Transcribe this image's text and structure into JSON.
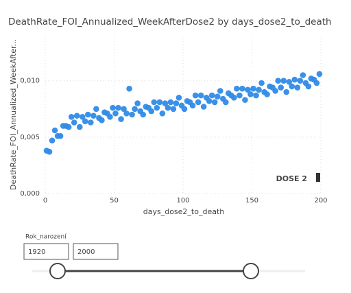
{
  "chart_data": {
    "type": "scatter",
    "title": "DeathRate_FOI_Annualized_WeekAfterDose2 by days_dose2_to_death",
    "x_label": "days_dose2_to_death",
    "y_label": "DeathRate_FOI_Annualized_WeekAfter...",
    "annotation": "DOSE 2",
    "color": "#2f8be6",
    "grid": true,
    "xlim": [
      0,
      200
    ],
    "xticks": [
      0,
      50,
      100,
      150,
      200
    ],
    "ylim": [
      0,
      0.014
    ],
    "yticks": [
      {
        "value": 0,
        "label": "0,000"
      },
      {
        "value": 0.005,
        "label": "0,005"
      },
      {
        "value": 0.01,
        "label": "0,010"
      }
    ],
    "x": [
      1,
      3,
      5,
      7,
      9,
      11,
      13,
      15,
      17,
      19,
      21,
      23,
      25,
      27,
      29,
      31,
      33,
      35,
      37,
      39,
      41,
      43,
      45,
      47,
      49,
      51,
      53,
      55,
      57,
      59,
      61,
      63,
      65,
      67,
      69,
      71,
      73,
      75,
      77,
      79,
      81,
      83,
      85,
      87,
      89,
      91,
      93,
      95,
      97,
      99,
      101,
      103,
      105,
      107,
      109,
      111,
      113,
      115,
      117,
      119,
      121,
      123,
      125,
      127,
      129,
      131,
      133,
      135,
      137,
      139,
      141,
      143,
      145,
      147,
      149,
      151,
      153,
      155,
      157,
      159,
      161,
      163,
      165,
      167,
      169,
      171,
      173,
      175,
      177,
      179,
      181,
      183,
      185,
      187,
      189,
      191,
      193,
      195,
      197,
      199
    ],
    "values": [
      0.0038,
      0.0037,
      0.0047,
      0.0056,
      0.0051,
      0.0051,
      0.006,
      0.006,
      0.0059,
      0.0068,
      0.0063,
      0.0069,
      0.0059,
      0.0068,
      0.0064,
      0.007,
      0.0063,
      0.0069,
      0.0075,
      0.0067,
      0.0065,
      0.0072,
      0.0071,
      0.0068,
      0.0076,
      0.0071,
      0.0076,
      0.0066,
      0.0075,
      0.0071,
      0.0093,
      0.007,
      0.0075,
      0.008,
      0.0073,
      0.007,
      0.0077,
      0.0076,
      0.0073,
      0.0081,
      0.0076,
      0.0081,
      0.0071,
      0.008,
      0.0076,
      0.0081,
      0.0075,
      0.008,
      0.0085,
      0.0078,
      0.0075,
      0.0082,
      0.0081,
      0.0078,
      0.0087,
      0.0081,
      0.0087,
      0.0077,
      0.0085,
      0.0082,
      0.0087,
      0.0081,
      0.0086,
      0.0091,
      0.0084,
      0.0081,
      0.0089,
      0.0087,
      0.0085,
      0.0093,
      0.0087,
      0.0093,
      0.0083,
      0.0092,
      0.0088,
      0.0093,
      0.0087,
      0.0092,
      0.0098,
      0.009,
      0.0088,
      0.0095,
      0.0094,
      0.0091,
      0.01,
      0.0094,
      0.01,
      0.009,
      0.0099,
      0.0095,
      0.0101,
      0.0094,
      0.01,
      0.0105,
      0.0098,
      0.0095,
      0.0102,
      0.0101,
      0.0098,
      0.0106
    ]
  },
  "slicer": {
    "title": "Rok_narození",
    "from": 1920,
    "to": 2000
  }
}
